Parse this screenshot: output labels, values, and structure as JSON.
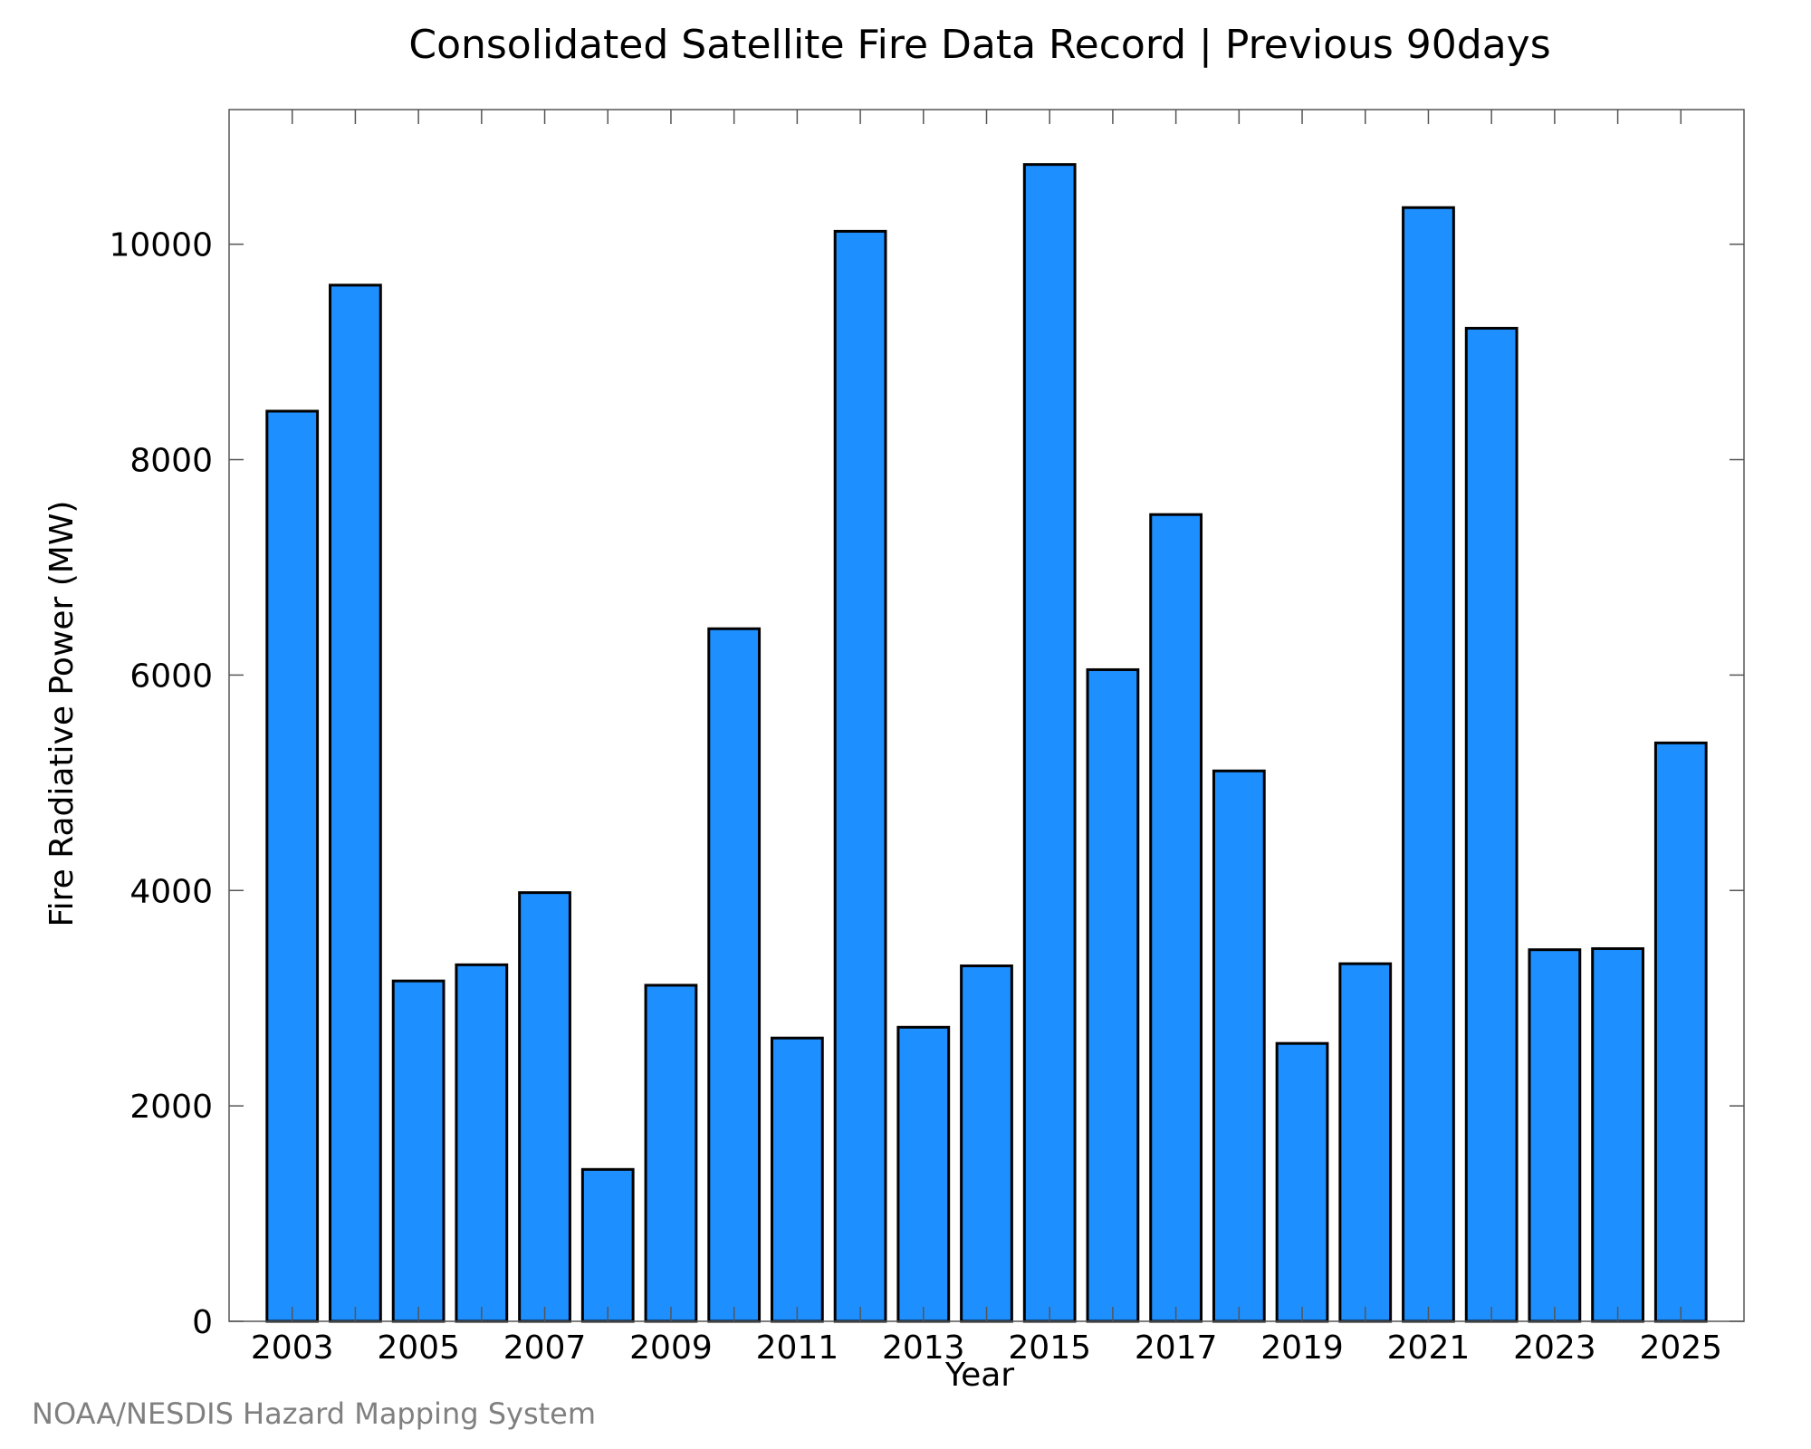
{
  "chart_data": {
    "type": "bar",
    "title": "Consolidated Satellite Fire Data Record | Previous 90days",
    "xlabel": "Year",
    "ylabel": "Fire Radiative Power (MW)",
    "categories": [
      "2003",
      "2004",
      "2005",
      "2006",
      "2007",
      "2008",
      "2009",
      "2010",
      "2011",
      "2012",
      "2013",
      "2014",
      "2015",
      "2016",
      "2017",
      "2018",
      "2019",
      "2020",
      "2021",
      "2022",
      "2023",
      "2024",
      "2025"
    ],
    "values": [
      8450,
      9620,
      3160,
      3310,
      3980,
      1410,
      3120,
      6430,
      2630,
      10120,
      2730,
      3300,
      10740,
      6050,
      7490,
      5110,
      2580,
      3320,
      10340,
      9220,
      3450,
      3460,
      5370
    ],
    "x_tick_labels": [
      "2003",
      "2005",
      "2007",
      "2009",
      "2011",
      "2013",
      "2015",
      "2017",
      "2019",
      "2021",
      "2023",
      "2025"
    ],
    "y_tick_labels": [
      "0",
      "2000",
      "4000",
      "6000",
      "8000",
      "10000"
    ],
    "y_ticks": [
      0,
      2000,
      4000,
      6000,
      8000,
      10000
    ],
    "ylim": [
      0,
      11250
    ],
    "xlim": [
      2002,
      2026
    ],
    "grid": false,
    "legend": "none",
    "bar_color": "#1e8fff",
    "edge_color": "#000000"
  },
  "credit": "NOAA/NESDIS Hazard Mapping System"
}
